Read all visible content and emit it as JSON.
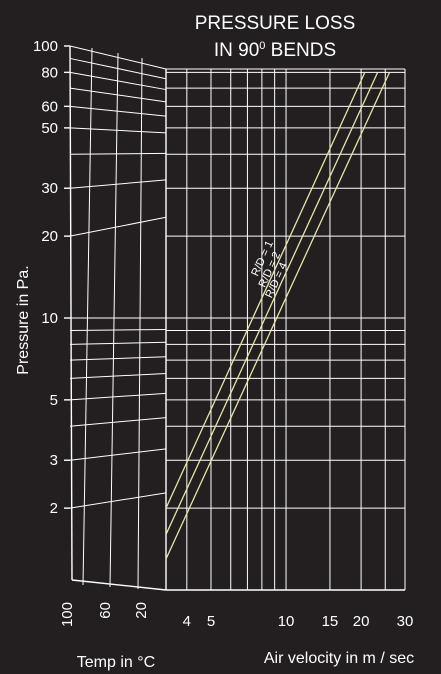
{
  "chart_data": {
    "type": "line",
    "title_line1": "PRESSURE LOSS",
    "title_line2_main": "IN 90",
    "title_line2_sup": "0",
    "title_line2_tail": " BENDS",
    "ylabel": "Pressure in Pa.",
    "xlabel": "Air velocity in m / sec",
    "temp_label": "Temp in °C",
    "y_scale": "log",
    "x_scale": "log",
    "grid": true,
    "ylim": [
      1,
      100
    ],
    "xlim": [
      3.3,
      30
    ],
    "y_ticks": [
      {
        "value": 100,
        "label": "100"
      },
      {
        "value": 80,
        "label": "80"
      },
      {
        "value": 60,
        "label": "60"
      },
      {
        "value": 50,
        "label": "50"
      },
      {
        "value": 30,
        "label": "30"
      },
      {
        "value": 20,
        "label": "20"
      },
      {
        "value": 10,
        "label": "10"
      },
      {
        "value": 5,
        "label": "5"
      },
      {
        "value": 3,
        "label": "3"
      },
      {
        "value": 2,
        "label": "2"
      }
    ],
    "x_ticks": [
      {
        "value": 4,
        "label": "4"
      },
      {
        "value": 5,
        "label": "5"
      },
      {
        "value": 10,
        "label": "10"
      },
      {
        "value": 15,
        "label": "15"
      },
      {
        "value": 20,
        "label": "20"
      },
      {
        "value": 30,
        "label": "30"
      }
    ],
    "temp_ticks": [
      {
        "value": 100,
        "label": "100"
      },
      {
        "value": 60,
        "label": "60"
      },
      {
        "value": 20,
        "label": "20"
      }
    ],
    "series": [
      {
        "name": "R/D = 1",
        "points": [
          [
            3.3,
            2.0
          ],
          [
            20.7,
            80
          ]
        ]
      },
      {
        "name": "R/D = 2",
        "points": [
          [
            3.3,
            1.6
          ],
          [
            23.3,
            80
          ]
        ]
      },
      {
        "name": "R/D = 4",
        "points": [
          [
            3.3,
            1.3
          ],
          [
            26.0,
            80
          ]
        ]
      }
    ],
    "colors": {
      "background": "#231f20",
      "grid": "#ffffff",
      "curves": "#e8e3a6",
      "text": "#ffffff"
    }
  }
}
